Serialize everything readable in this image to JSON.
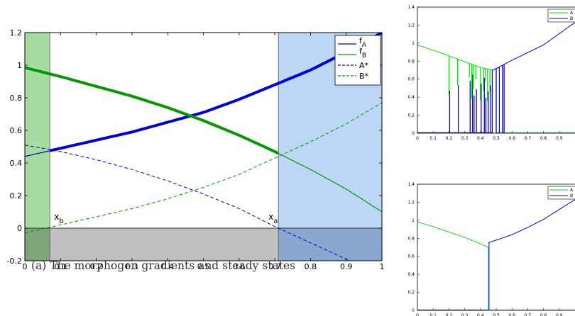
{
  "caption": "(a)  The morphogen gradients and steady states",
  "colors": {
    "blue": "#0000dd",
    "green": "#009900",
    "bright_green": "#11dd11",
    "green_region": "#a6dca0",
    "blue_region": "#bcd6f5",
    "gray_region": "#c0c0c0",
    "overlap_region": "#8aa8cf"
  },
  "chart_data": [
    {
      "type": "line",
      "title": "",
      "xlabel": "",
      "ylabel": "",
      "xlim": [
        0,
        1
      ],
      "ylim": [
        -0.2,
        1.2
      ],
      "xticks": [
        "0",
        "0.1",
        "0.2",
        "0.3",
        "0.4",
        "0.5",
        "0.6",
        "0.7",
        "0.8",
        "0.9",
        "1"
      ],
      "yticks": [
        "-0.2",
        "0",
        "0.2",
        "0.4",
        "0.6",
        "0.8",
        "1",
        "1.2"
      ],
      "grid": false,
      "legend_position": "top-right",
      "legend": [
        {
          "label": "f",
          "sub": "A",
          "color": "blue",
          "dash": false
        },
        {
          "label": "f",
          "sub": "B",
          "color": "green",
          "dash": false
        },
        {
          "label": "A*",
          "sub": "",
          "color": "blue",
          "dash": true
        },
        {
          "label": "B*",
          "sub": "",
          "color": "green",
          "dash": true
        }
      ],
      "annotations": [
        {
          "label": "x",
          "sub": "b",
          "x": 0.07
        },
        {
          "label": "x",
          "sub": "a",
          "x": 0.71
        }
      ],
      "shaded_regions": [
        {
          "x": [
            0,
            0.07
          ],
          "y": [
            -0.2,
            1.2
          ],
          "color": "green_region"
        },
        {
          "x": [
            0.71,
            1
          ],
          "y": [
            -0.2,
            1.2
          ],
          "color": "blue_region"
        },
        {
          "x": [
            0,
            1
          ],
          "y": [
            -0.2,
            0
          ],
          "color": "gray_region"
        }
      ],
      "series": [
        {
          "key": "fA",
          "x": [
            0,
            0.1,
            0.2,
            0.3,
            0.4,
            0.5,
            0.6,
            0.7,
            0.8,
            0.9,
            1.0
          ],
          "y": [
            0.44,
            0.49,
            0.54,
            0.59,
            0.65,
            0.71,
            0.79,
            0.88,
            0.97,
            1.08,
            1.2
          ],
          "bold_from": 0.07
        },
        {
          "key": "fB",
          "x": [
            0,
            0.1,
            0.2,
            0.3,
            0.4,
            0.5,
            0.6,
            0.7,
            0.8,
            0.9,
            1.0
          ],
          "y": [
            0.985,
            0.93,
            0.87,
            0.81,
            0.74,
            0.66,
            0.57,
            0.47,
            0.36,
            0.24,
            0.1
          ],
          "bold_to": 0.71
        },
        {
          "key": "Astar",
          "x": [
            0,
            0.1,
            0.2,
            0.3,
            0.4,
            0.5,
            0.6,
            0.7,
            0.8,
            0.9,
            1.0
          ],
          "y": [
            0.51,
            0.47,
            0.42,
            0.36,
            0.29,
            0.21,
            0.12,
            0.01,
            -0.09,
            -0.19,
            -0.3
          ]
        },
        {
          "key": "Bstar",
          "x": [
            0,
            0.1,
            0.2,
            0.3,
            0.4,
            0.5,
            0.6,
            0.7,
            0.8,
            0.9,
            1.0
          ],
          "y": [
            -0.03,
            0.02,
            0.07,
            0.12,
            0.18,
            0.25,
            0.33,
            0.43,
            0.53,
            0.64,
            0.77
          ]
        }
      ]
    },
    {
      "type": "line",
      "xlim": [
        0,
        1
      ],
      "ylim": [
        0,
        1.4
      ],
      "xticks": [
        "0",
        "0.1",
        "0.2",
        "0.3",
        "0.4",
        "0.5",
        "0.6",
        "0.7",
        "0.8",
        "0.9"
      ],
      "yticks": [
        "0",
        "0.2",
        "0.4",
        "0.6",
        "0.8",
        "1",
        "1.2",
        "1.4"
      ],
      "legend_position": "top-right",
      "legend": [
        {
          "label": "A",
          "color": "bright_green"
        },
        {
          "label": "B",
          "color": "blue"
        }
      ],
      "series": [
        {
          "key": "A",
          "x": [
            0,
            0.2,
            0.4,
            0.48
          ],
          "y": [
            0.98,
            0.86,
            0.73,
            0.7
          ]
        },
        {
          "key": "B",
          "x": [
            0.48,
            0.6,
            0.8,
            1.0
          ],
          "y": [
            0.7,
            0.81,
            0.98,
            1.23
          ]
        }
      ],
      "spikes_x": [
        0.2,
        0.255,
        0.33,
        0.345,
        0.355,
        0.37,
        0.4,
        0.42,
        0.43,
        0.445,
        0.46,
        0.475,
        0.5,
        0.52,
        0.54,
        0.55
      ]
    },
    {
      "type": "line",
      "xlim": [
        0,
        1
      ],
      "ylim": [
        0,
        1.4
      ],
      "xticks": [
        "0",
        "0.1",
        "0.2",
        "0.3",
        "0.4",
        "0.5",
        "0.6",
        "0.7",
        "0.8",
        "0.9"
      ],
      "yticks": [
        "0",
        "0.2",
        "0.4",
        "0.6",
        "0.8",
        "1",
        "1.2",
        "1.4"
      ],
      "legend_position": "top-right",
      "legend": [
        {
          "label": "A",
          "color": "bright_green"
        },
        {
          "label": "B",
          "color": "blue"
        }
      ],
      "switch_x": 0.45,
      "series": [
        {
          "key": "A",
          "x": [
            0,
            0.1,
            0.2,
            0.3,
            0.4,
            0.45
          ],
          "y": [
            0.98,
            0.93,
            0.87,
            0.81,
            0.74,
            0.7
          ]
        },
        {
          "key": "B",
          "x": [
            0.45,
            0.5,
            0.6,
            0.7,
            0.8,
            0.9,
            1.0
          ],
          "y": [
            0.75,
            0.78,
            0.84,
            0.92,
            1.01,
            1.12,
            1.23
          ]
        }
      ]
    }
  ]
}
